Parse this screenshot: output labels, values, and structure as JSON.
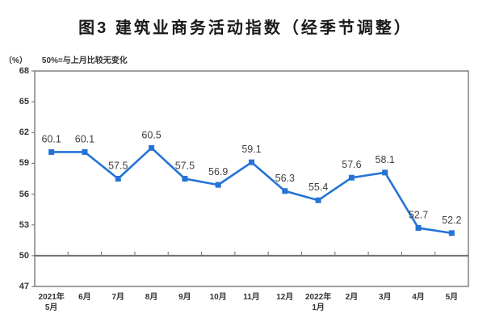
{
  "chart_data": {
    "type": "line",
    "title": "图3 建筑业商务活动指数（经季节调整）",
    "unit_label": "（%）",
    "note": "50%=与上月比较无变化",
    "categories": [
      [
        "2021年",
        "5月"
      ],
      [
        "6月"
      ],
      [
        "7月"
      ],
      [
        "8月"
      ],
      [
        "9月"
      ],
      [
        "10月"
      ],
      [
        "11月"
      ],
      [
        "12月"
      ],
      [
        "2022年",
        "1月"
      ],
      [
        "2月"
      ],
      [
        "3月"
      ],
      [
        "4月"
      ],
      [
        "5月"
      ]
    ],
    "series": [
      {
        "name": "建筑业商务活动指数",
        "values": [
          60.1,
          60.1,
          57.5,
          60.5,
          57.5,
          56.9,
          59.1,
          56.3,
          55.4,
          57.6,
          58.1,
          52.7,
          52.2
        ]
      }
    ],
    "ylim": [
      47,
      68
    ],
    "yticks": [
      47,
      50,
      53,
      56,
      59,
      62,
      65,
      68
    ],
    "reference_line": 50,
    "grid": false,
    "legend": "none",
    "colors": {
      "line": "#2473D5",
      "marker": "#2473D5",
      "axis": "#808080",
      "reference": "#6f6f6f",
      "data_label": "#404040",
      "tick_label": "#333333",
      "title": "#1a1a1a"
    }
  }
}
